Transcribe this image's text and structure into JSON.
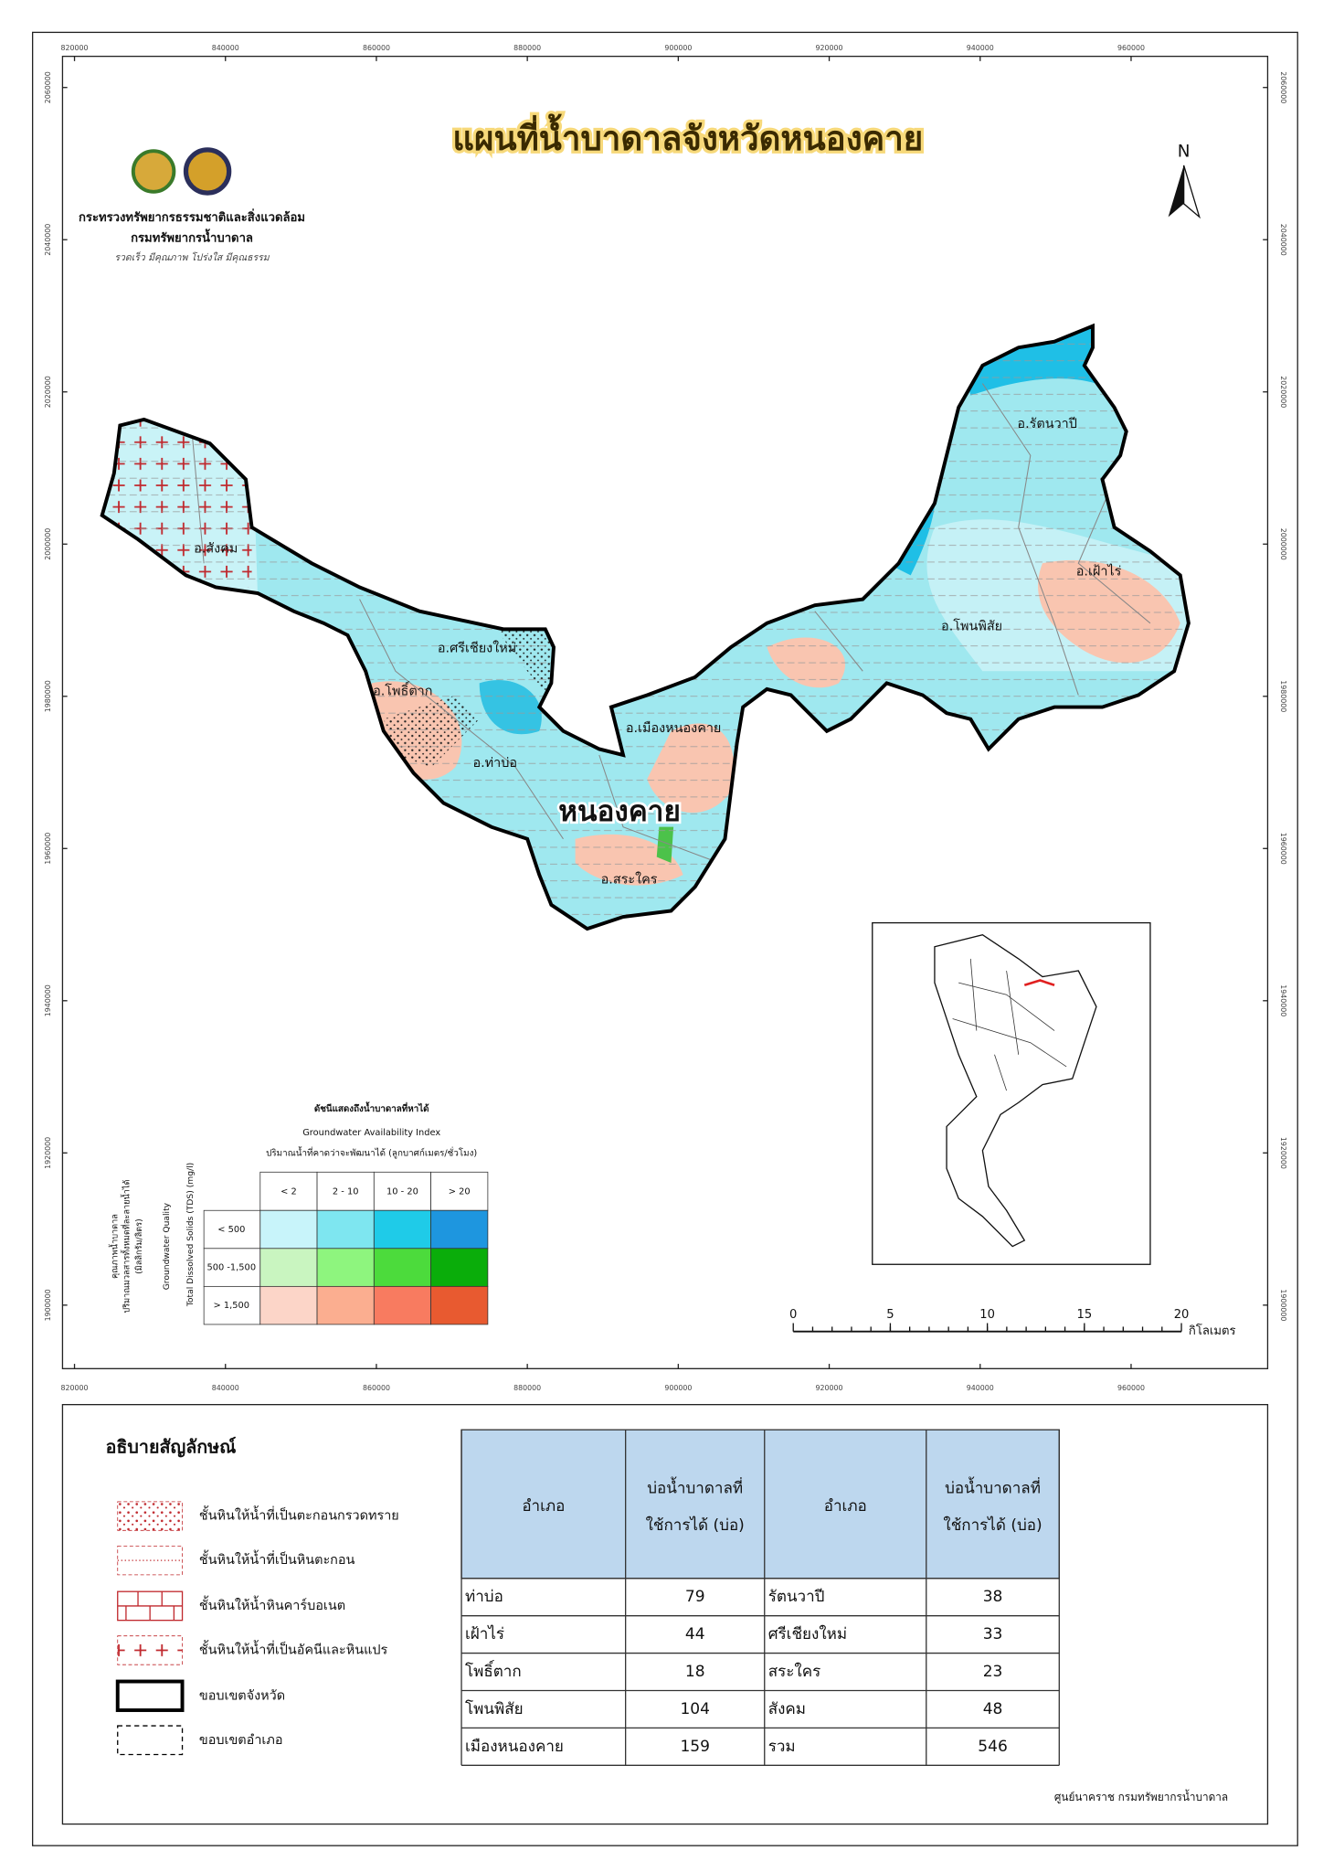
{
  "title": "แผนที่น้ำบาดาลจังหวัดหนองคาย",
  "organization": {
    "ministry": "กระทรวงทรัพยากรธรรมชาติและสิ่งแวดล้อม",
    "department": "กรมทรัพยากรน้ำบาดาล",
    "motto": "รวดเร็ว มีคุณภาพ โปร่งใส มีคุณธรรม"
  },
  "north": "N",
  "grid": {
    "x_ticks": [
      820000,
      840000,
      860000,
      880000,
      900000,
      920000,
      940000,
      960000
    ],
    "y_ticks": [
      1900000,
      1920000,
      1940000,
      1960000,
      1980000,
      2000000,
      2020000,
      2040000,
      2060000
    ]
  },
  "map_labels": {
    "province": "หนองคาย",
    "districts": [
      "อ.สังคม",
      "อ.ศรีเชียงใหม่",
      "อ.โพธิ์ตาก",
      "อ.ท่าบ่อ",
      "อ.เมืองหนองคาย",
      "อ.สระใคร",
      "อ.รัตนวาปี",
      "อ.เฝ้าไร่",
      "อ.โพนพิสัย"
    ]
  },
  "index_legend": {
    "title": "ดัชนีแสดงถึงน้ำบาดาลที่หาได้",
    "subtitle_en": "Groundwater Availability Index",
    "axis_x": "ปริมาณน้ำที่คาดว่าจะพัฒนาได้ (ลูกบาศก์เมตร/ชั่วโมง)",
    "axis_y_th": [
      "คุณภาพน้ำบาดาล",
      "ปริมาณมวลสารทั้งหมดที่ละลายน้ำได้",
      "(มิลลิกรัม/ลิตร)"
    ],
    "axis_y_en": [
      "Groundwater Quality",
      "Total Dissolved Solids (TDS) (mg/l)"
    ],
    "columns": [
      "< 2",
      "2 - 10",
      "10 - 20",
      "> 20"
    ],
    "rows": [
      "< 500",
      "500 -1,500",
      "> 1,500"
    ],
    "colors": [
      [
        "#c8f4fa",
        "#7ee6f0",
        "#1fcbe8",
        "#1e96df"
      ],
      [
        "#c9f5c0",
        "#8ef57e",
        "#4cdb3c",
        "#0aad0a"
      ],
      [
        "#fcd5c8",
        "#fbae90",
        "#f87b60",
        "#e85a30"
      ]
    ]
  },
  "scale_bar": {
    "ticks": [
      0,
      5,
      10,
      15,
      20
    ],
    "unit": "กิโลเมตร"
  },
  "legend": {
    "title": "อธิบายสัญลักษณ์",
    "items": [
      "ชั้นหินให้น้ำที่เป็นตะกอนกรวดทราย",
      "ชั้นหินให้น้ำที่เป็นหินตะกอน",
      "ชั้นหินให้น้ำหินคาร์บอเนต",
      "ชั้นหินให้น้ำที่เป็นอัคนีและหินแปร",
      "ขอบเขตจังหวัด",
      "ขอบเขตอำเภอ"
    ]
  },
  "table": {
    "header": [
      "อำเภอ",
      [
        "บ่อน้ำบาดาลที่",
        "ใช้การได้ (บ่อ)"
      ],
      "อำเภอ",
      [
        "บ่อน้ำบาดาลที่",
        "ใช้การได้ (บ่อ)"
      ]
    ],
    "rows": [
      [
        "ท่าบ่อ",
        79,
        "รัตนวาปี",
        38
      ],
      [
        "เฝ้าไร่",
        44,
        "ศรีเชียงใหม่",
        33
      ],
      [
        "โพธิ์ตาก",
        18,
        "สระใคร",
        23
      ],
      [
        "โพนพิสัย",
        104,
        "สังคม",
        48
      ],
      [
        "เมืองหนองคาย",
        159,
        "รวม",
        546
      ]
    ]
  },
  "credit": "ศูนย์นาคราช กรมทรัพยากรน้ำบาดาล"
}
